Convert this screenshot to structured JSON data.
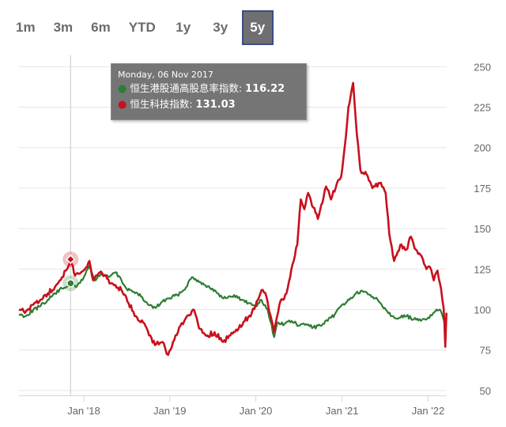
{
  "range_selector": {
    "buttons": [
      "1m",
      "3m",
      "6m",
      "YTD",
      "1y",
      "3y",
      "5y"
    ],
    "selected": "5y"
  },
  "tooltip": {
    "date": "Monday, 06 Nov 2017",
    "rows": [
      {
        "label": "恒生港股通高股息率指数",
        "value": "116.22",
        "color": "#2e7d32"
      },
      {
        "label": "恒生科技指数",
        "value": "131.03",
        "color": "#c8101c"
      }
    ]
  },
  "chart_data": {
    "type": "line",
    "x_tick_labels": [
      "Jan '18",
      "Jan '19",
      "Jan '20",
      "Jan '21",
      "Jan '22"
    ],
    "y_ticks": [
      50,
      75,
      100,
      125,
      150,
      175,
      200,
      225,
      250
    ],
    "ylim": [
      47,
      257
    ],
    "xlim": [
      "2017-04-01",
      "2022-03-21"
    ],
    "crosshair_date": "2017-11-06",
    "grid": true,
    "y_axis_side": "right",
    "series": [
      {
        "name": "恒生港股通高股息率指数",
        "color": "#2e7d32",
        "points": [
          [
            "2017-04-01",
            97
          ],
          [
            "2017-05-01",
            96
          ],
          [
            "2017-06-01",
            100
          ],
          [
            "2017-07-01",
            102
          ],
          [
            "2017-08-01",
            106
          ],
          [
            "2017-09-01",
            110
          ],
          [
            "2017-10-01",
            113
          ],
          [
            "2017-11-06",
            116.22
          ],
          [
            "2017-12-01",
            114
          ],
          [
            "2018-01-01",
            120
          ],
          [
            "2018-01-25",
            127
          ],
          [
            "2018-02-15",
            118
          ],
          [
            "2018-03-15",
            122
          ],
          [
            "2018-04-15",
            120
          ],
          [
            "2018-05-15",
            123
          ],
          [
            "2018-06-10",
            118
          ],
          [
            "2018-07-01",
            113
          ],
          [
            "2018-08-01",
            111
          ],
          [
            "2018-09-01",
            108
          ],
          [
            "2018-10-01",
            103
          ],
          [
            "2018-11-01",
            101
          ],
          [
            "2018-12-01",
            105
          ],
          [
            "2019-01-01",
            107
          ],
          [
            "2019-02-01",
            109
          ],
          [
            "2019-03-01",
            112
          ],
          [
            "2019-04-05",
            120
          ],
          [
            "2019-05-01",
            118
          ],
          [
            "2019-06-01",
            115
          ],
          [
            "2019-07-01",
            113
          ],
          [
            "2019-08-01",
            108
          ],
          [
            "2019-09-01",
            107
          ],
          [
            "2019-10-01",
            109
          ],
          [
            "2019-11-01",
            106
          ],
          [
            "2019-12-01",
            104
          ],
          [
            "2020-01-01",
            102
          ],
          [
            "2020-01-20",
            106
          ],
          [
            "2020-02-20",
            100
          ],
          [
            "2020-03-19",
            83
          ],
          [
            "2020-04-01",
            92
          ],
          [
            "2020-05-01",
            91
          ],
          [
            "2020-06-01",
            93
          ],
          [
            "2020-07-01",
            90
          ],
          [
            "2020-08-01",
            91
          ],
          [
            "2020-09-01",
            89
          ],
          [
            "2020-10-01",
            90
          ],
          [
            "2020-11-01",
            93
          ],
          [
            "2020-12-01",
            97
          ],
          [
            "2021-01-01",
            103
          ],
          [
            "2021-02-01",
            106
          ],
          [
            "2021-03-01",
            110
          ],
          [
            "2021-04-01",
            111
          ],
          [
            "2021-05-01",
            109
          ],
          [
            "2021-06-01",
            106
          ],
          [
            "2021-07-01",
            101
          ],
          [
            "2021-08-01",
            96
          ],
          [
            "2021-09-01",
            95
          ],
          [
            "2021-10-01",
            96
          ],
          [
            "2021-11-01",
            94
          ],
          [
            "2021-12-01",
            93
          ],
          [
            "2022-01-01",
            95
          ],
          [
            "2022-02-01",
            99
          ],
          [
            "2022-02-20",
            100
          ],
          [
            "2022-03-10",
            93
          ],
          [
            "2022-03-18",
            90
          ]
        ]
      },
      {
        "name": "恒生科技指数",
        "color": "#c8101c",
        "points": [
          [
            "2017-04-01",
            100
          ],
          [
            "2017-05-01",
            99
          ],
          [
            "2017-06-01",
            103
          ],
          [
            "2017-07-01",
            106
          ],
          [
            "2017-08-01",
            110
          ],
          [
            "2017-09-01",
            114
          ],
          [
            "2017-10-01",
            120
          ],
          [
            "2017-11-06",
            131.03
          ],
          [
            "2017-11-25",
            121
          ],
          [
            "2017-12-20",
            123
          ],
          [
            "2018-01-10",
            126
          ],
          [
            "2018-01-25",
            130
          ],
          [
            "2018-02-10",
            118
          ],
          [
            "2018-03-10",
            123
          ],
          [
            "2018-04-10",
            119
          ],
          [
            "2018-05-10",
            115
          ],
          [
            "2018-06-10",
            112
          ],
          [
            "2018-07-10",
            104
          ],
          [
            "2018-08-10",
            96
          ],
          [
            "2018-09-10",
            92
          ],
          [
            "2018-10-10",
            84
          ],
          [
            "2018-10-30",
            78
          ],
          [
            "2018-12-01",
            80
          ],
          [
            "2018-12-25",
            72
          ],
          [
            "2019-01-15",
            80
          ],
          [
            "2019-02-15",
            90
          ],
          [
            "2019-03-15",
            96
          ],
          [
            "2019-04-10",
            100
          ],
          [
            "2019-05-10",
            88
          ],
          [
            "2019-06-10",
            84
          ],
          [
            "2019-07-10",
            86
          ],
          [
            "2019-08-15",
            80
          ],
          [
            "2019-09-15",
            84
          ],
          [
            "2019-10-15",
            87
          ],
          [
            "2019-11-15",
            93
          ],
          [
            "2019-12-15",
            98
          ],
          [
            "2020-01-10",
            106
          ],
          [
            "2020-01-25",
            112
          ],
          [
            "2020-02-15",
            108
          ],
          [
            "2020-03-19",
            86
          ],
          [
            "2020-04-10",
            103
          ],
          [
            "2020-05-10",
            110
          ],
          [
            "2020-06-05",
            128
          ],
          [
            "2020-06-25",
            140
          ],
          [
            "2020-07-10",
            168
          ],
          [
            "2020-07-25",
            162
          ],
          [
            "2020-08-10",
            172
          ],
          [
            "2020-09-01",
            163
          ],
          [
            "2020-09-20",
            156
          ],
          [
            "2020-10-10",
            166
          ],
          [
            "2020-10-25",
            176
          ],
          [
            "2020-11-15",
            168
          ],
          [
            "2020-12-10",
            178
          ],
          [
            "2020-12-28",
            182
          ],
          [
            "2021-01-12",
            200
          ],
          [
            "2021-01-28",
            225
          ],
          [
            "2021-02-17",
            240
          ],
          [
            "2021-03-05",
            208
          ],
          [
            "2021-03-20",
            186
          ],
          [
            "2021-04-10",
            185
          ],
          [
            "2021-05-10",
            175
          ],
          [
            "2021-06-10",
            178
          ],
          [
            "2021-07-05",
            172
          ],
          [
            "2021-07-20",
            147
          ],
          [
            "2021-08-10",
            130
          ],
          [
            "2021-09-05",
            140
          ],
          [
            "2021-10-01",
            137
          ],
          [
            "2021-10-20",
            145
          ],
          [
            "2021-11-10",
            137
          ],
          [
            "2021-12-10",
            131
          ],
          [
            "2021-12-25",
            125
          ],
          [
            "2022-01-10",
            126
          ],
          [
            "2022-01-25",
            118
          ],
          [
            "2022-02-10",
            124
          ],
          [
            "2022-02-25",
            113
          ],
          [
            "2022-03-08",
            101
          ],
          [
            "2022-03-15",
            77
          ],
          [
            "2022-03-20",
            98
          ]
        ]
      }
    ]
  }
}
